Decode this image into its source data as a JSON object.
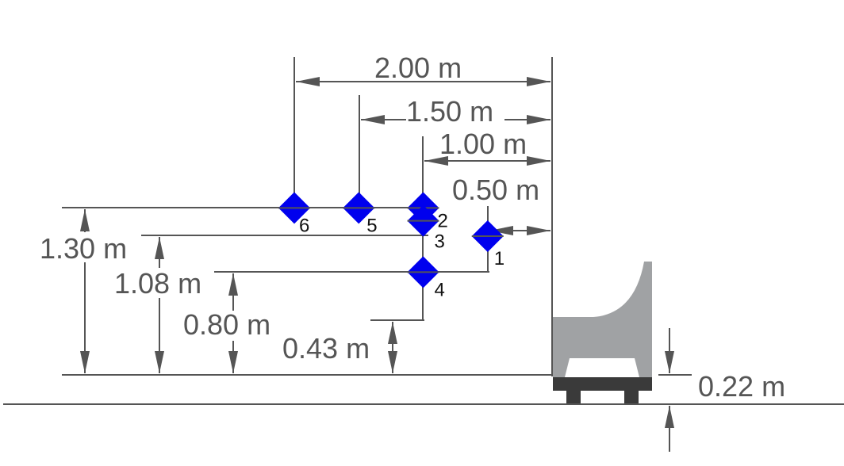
{
  "colors": {
    "line": "#555555",
    "marker": "#0000ee",
    "seat": "#a0a2a4",
    "base": "#3a3a3a",
    "text_dim": "#555555",
    "text_label": "#111111"
  },
  "dimensions": {
    "horizontal": {
      "d200": "2.00 m",
      "d150": "1.50 m",
      "d100": "1.00 m",
      "d050": "0.50 m"
    },
    "vertical": {
      "h130": "1.30 m",
      "h108": "1.08 m",
      "h080": "0.80 m",
      "h043": "0.43 m",
      "h022": "0.22 m"
    }
  },
  "points": [
    {
      "id": "1",
      "distance_m": 0.5,
      "height_m": 1.08
    },
    {
      "id": "2",
      "distance_m": 1.0,
      "height_m": 1.3
    },
    {
      "id": "3",
      "distance_m": 1.0,
      "height_m": 1.2
    },
    {
      "id": "4",
      "distance_m": 1.0,
      "height_m": 0.8
    },
    {
      "id": "5",
      "distance_m": 1.5,
      "height_m": 1.3
    },
    {
      "id": "6",
      "distance_m": 2.0,
      "height_m": 1.3
    }
  ],
  "icons": {
    "seat": "seat-icon",
    "marker": "diamond-marker-icon"
  }
}
